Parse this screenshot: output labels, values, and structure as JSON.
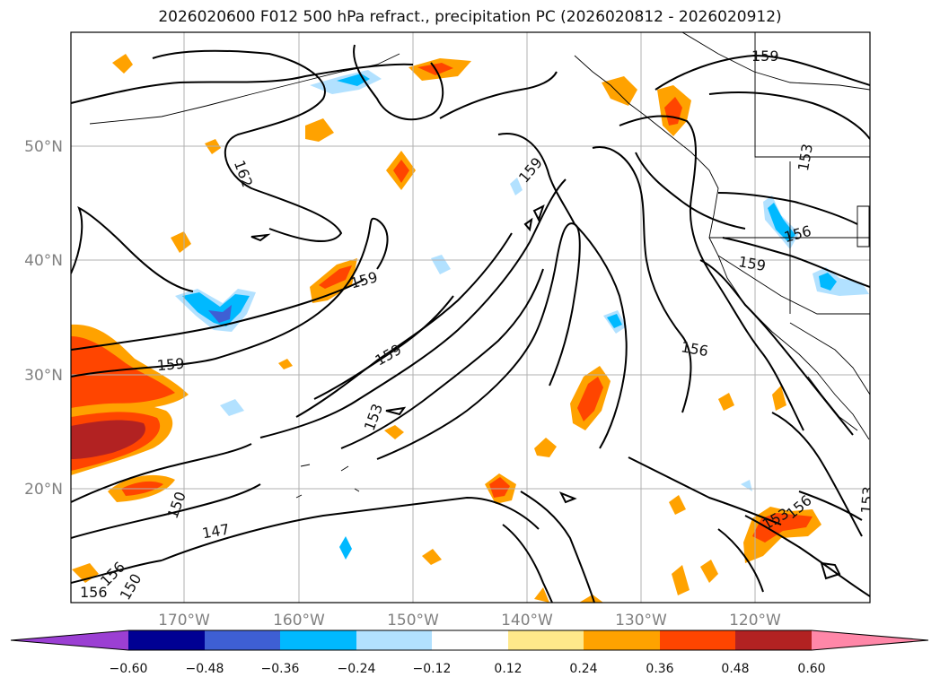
{
  "title": "2026020600 F012 500 hPa refract., precipitation PC (2026020812 - 2026020912)",
  "map": {
    "lon_range": [
      -180,
      -110
    ],
    "lat_range": [
      10,
      60
    ],
    "lon_ticks": [
      "170°W",
      "160°W",
      "150°W",
      "140°W",
      "130°W",
      "120°W"
    ],
    "lat_ticks": [
      "20°N",
      "30°N",
      "40°N",
      "50°N"
    ],
    "gridlines": true,
    "contour_labels": [
      "159",
      "162",
      "159",
      "159",
      "159",
      "159",
      "153",
      "156",
      "159",
      "153",
      "156",
      "150",
      "147",
      "153",
      "156",
      "153",
      "156",
      "150",
      "156"
    ]
  },
  "colorbar": {
    "ticks": [
      "−0.60",
      "−0.48",
      "−0.36",
      "−0.24",
      "−0.12",
      "0.12",
      "0.24",
      "0.36",
      "0.48",
      "0.60"
    ],
    "colors": [
      "#9b3fd3",
      "#000093",
      "#3e5fd4",
      "#00b9ff",
      "#b2e1ff",
      "#ffffff",
      "#ffe88a",
      "#ffa200",
      "#ff4500",
      "#b22222",
      "#ff87a8"
    ],
    "extend": "both"
  }
}
